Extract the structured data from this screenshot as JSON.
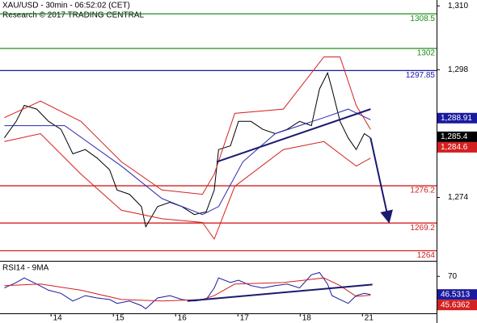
{
  "chart_data": [
    {
      "type": "line",
      "title": "XAU/USD - 30min - 06:52:02 (CET)",
      "subtitle": "Research © 2017 TRADING CENTRAL",
      "xlim": [
        0.18,
        7.19
      ],
      "ylim": [
        1262.1,
        1311.1
      ],
      "yticks": [
        {
          "value": 1310,
          "label": "1,310"
        },
        {
          "value": 1298,
          "label": "1,298"
        },
        {
          "value": 1274,
          "label": "1,274"
        }
      ],
      "series": [
        {
          "color": "#000000",
          "x": [
            0.25,
            0.44,
            0.57,
            0.77,
            0.96,
            1.16,
            1.35,
            1.55,
            1.74,
            1.94,
            2.06,
            2.26,
            2.45,
            2.52,
            2.71,
            2.91,
            3.1,
            3.3,
            3.49,
            3.62,
            3.69,
            3.88,
            4.01,
            4.21,
            4.4,
            4.6,
            4.79,
            4.99,
            5.18,
            5.31,
            5.44,
            5.51,
            5.64,
            5.77,
            5.9,
            6.03,
            6.13
          ],
          "values": [
            1285.2,
            1288.3,
            1291.3,
            1290.6,
            1288.3,
            1286.8,
            1282.2,
            1283.0,
            1281.4,
            1279.2,
            1275.4,
            1274.6,
            1272.3,
            1268.5,
            1272.3,
            1273.1,
            1272.3,
            1270.8,
            1271.3,
            1275.4,
            1283.0,
            1283.7,
            1288.3,
            1288.3,
            1286.8,
            1286.0,
            1286.8,
            1288.3,
            1287.5,
            1294.4,
            1297.4,
            1294.4,
            1288.3,
            1285.2,
            1283.0,
            1286.0,
            1285.2
          ]
        },
        {
          "color": "#2a2ab0",
          "x": [
            0.25,
            1.22,
            2.13,
            2.78,
            3.43,
            3.69,
            4.08,
            4.6,
            5.38,
            5.77,
            6.13
          ],
          "values": [
            1287.5,
            1287.5,
            1279.9,
            1273.8,
            1270.8,
            1272.3,
            1280.7,
            1286.0,
            1289.0,
            1290.6,
            1288.6
          ]
        },
        {
          "color": "#d42020",
          "x": [
            0.25,
            0.83,
            1.48,
            2.13,
            2.78,
            3.43,
            3.62,
            3.95,
            4.73,
            5.38,
            5.64,
            5.9,
            6.13
          ],
          "values": [
            1289.0,
            1292.1,
            1288.3,
            1280.7,
            1275.4,
            1274.6,
            1278.4,
            1289.8,
            1290.6,
            1300.4,
            1300.4,
            1291.3,
            1286.8
          ]
        },
        {
          "color": "#d42020",
          "x": [
            0.25,
            0.83,
            1.48,
            2.13,
            2.78,
            3.43,
            3.62,
            3.95,
            4.73,
            5.38,
            5.64,
            5.9,
            6.13
          ],
          "values": [
            1284.5,
            1286.0,
            1278.4,
            1271.6,
            1270.0,
            1269.3,
            1266.2,
            1276.1,
            1283.0,
            1284.5,
            1282.2,
            1279.9,
            1281.4
          ]
        }
      ],
      "levels": [
        {
          "value": 1308.5,
          "color": "#1e8c1e"
        },
        {
          "value": 1302,
          "color": "#1e8c1e"
        },
        {
          "value": 1297.85,
          "color": "#1a1aa0"
        },
        {
          "value": 1276.2,
          "color": "#d42020"
        },
        {
          "value": 1269.2,
          "color": "#d42020"
        },
        {
          "value": 1264,
          "color": "#d42020"
        }
      ],
      "trendlines": [
        {
          "color": "#1a1a70",
          "x": [
            3.66,
            6.13
          ],
          "y": [
            1280.7,
            1290.6
          ]
        },
        {
          "color": "#1a1a70",
          "x": [
            6.13,
            6.42
          ],
          "y": [
            1285.2,
            1269.7
          ],
          "arrow": true
        }
      ],
      "markers": [
        {
          "value": 1288.91,
          "label": "1,288.91",
          "color": "#1a1aa0"
        },
        {
          "value": 1285.4,
          "label": "1,285.4",
          "color": "#000000"
        },
        {
          "value": 1284.6,
          "label": "1,284.6",
          "color": "#d42020"
        }
      ]
    },
    {
      "type": "line",
      "title": "RSI14 - 9MA",
      "xlim": [
        0.18,
        7.19
      ],
      "xticks": [
        {
          "value": 1,
          "label": "14"
        },
        {
          "value": 2,
          "label": "15"
        },
        {
          "value": 3,
          "label": "16"
        },
        {
          "value": 4,
          "label": "17"
        },
        {
          "value": 5,
          "label": "18"
        },
        {
          "value": 6,
          "label": "21"
        }
      ],
      "ylim": [
        22.1,
        89.1
      ],
      "yticks": [
        70
      ],
      "series": [
        {
          "color": "#1a1aa0",
          "x": [
            0.25,
            0.44,
            0.57,
            0.77,
            0.96,
            1.16,
            1.35,
            1.55,
            1.74,
            1.94,
            2.06,
            2.26,
            2.45,
            2.52,
            2.71,
            2.91,
            3.1,
            3.3,
            3.49,
            3.62,
            3.69,
            3.88,
            4.01,
            4.21,
            4.4,
            4.6,
            4.79,
            4.99,
            5.18,
            5.31,
            5.44,
            5.51,
            5.64,
            5.77,
            5.9,
            6.03,
            6.13
          ],
          "values": [
            55,
            62,
            68,
            60,
            52,
            48,
            38,
            45,
            42,
            40,
            35,
            38,
            32,
            28,
            42,
            45,
            40,
            38,
            40,
            55,
            68,
            62,
            65,
            58,
            55,
            58,
            60,
            55,
            72,
            75,
            60,
            45,
            40,
            35,
            45,
            48,
            46.5
          ]
        },
        {
          "color": "#d42020",
          "x": [
            0.25,
            0.83,
            1.48,
            2.13,
            2.78,
            3.43,
            3.62,
            3.95,
            4.73,
            5.38,
            5.64,
            5.9,
            6.13
          ],
          "values": [
            58,
            60,
            52,
            40,
            38,
            40,
            45,
            60,
            62,
            68,
            58,
            44,
            45.6
          ]
        }
      ],
      "trendlines": [
        {
          "color": "#1a1a70",
          "x": [
            3.19,
            6.16
          ],
          "y": [
            38.1,
            59.4
          ]
        }
      ],
      "markers": [
        {
          "value": 46.5313,
          "label": "46.5313",
          "color": "#1a1aa0"
        },
        {
          "value": 45.6362,
          "label": "45.6362",
          "color": "#d42020"
        }
      ]
    }
  ]
}
